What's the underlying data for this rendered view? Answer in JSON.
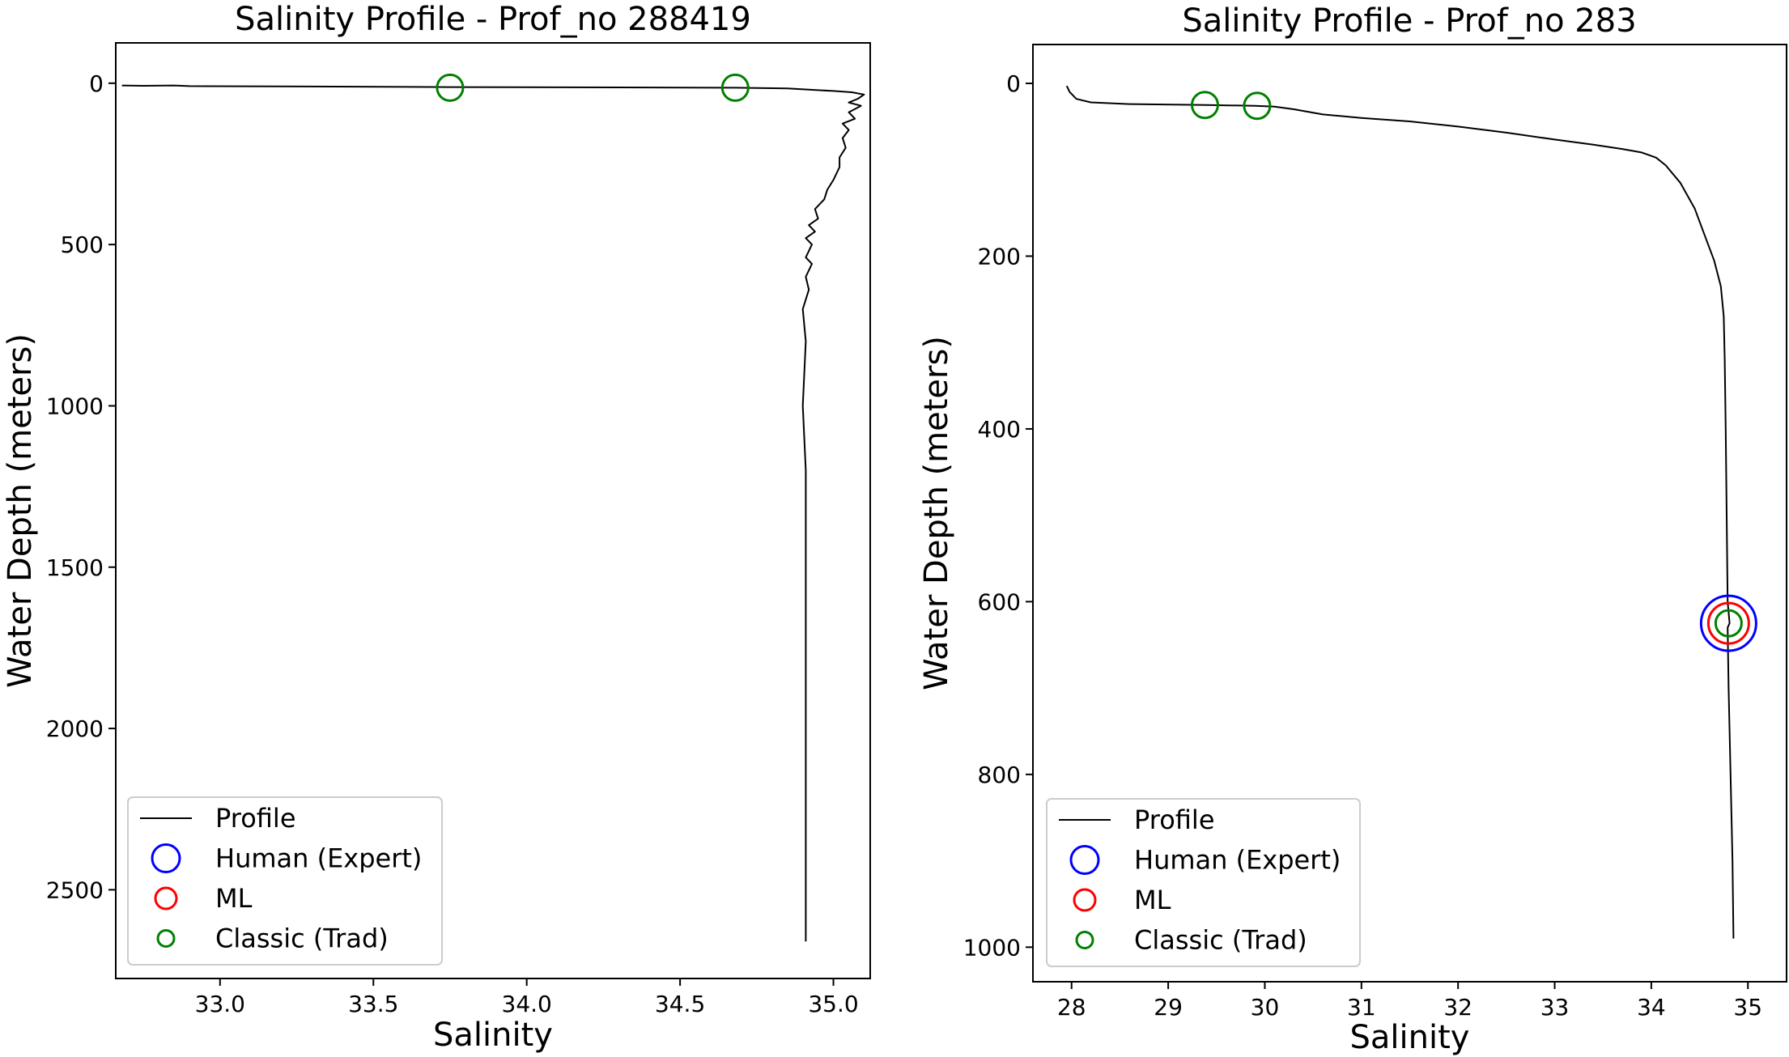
{
  "chart_data": [
    {
      "type": "line",
      "title": "Salinity Profile - Prof_no 288419",
      "xlabel": "Salinity",
      "ylabel": "Water Depth (meters)",
      "xlim": [
        32.66,
        35.12
      ],
      "ylim": [
        2775,
        -125
      ],
      "y_inverted": true,
      "xticks": [
        33.0,
        33.5,
        34.0,
        34.5,
        35.0
      ],
      "xtick_labels": [
        "33.0",
        "33.5",
        "34.0",
        "34.5",
        "35.0"
      ],
      "yticks": [
        0,
        500,
        1000,
        1500,
        2000,
        2500
      ],
      "ytick_labels": [
        "0",
        "500",
        "1000",
        "1500",
        "2000",
        "2500"
      ],
      "legend": {
        "position": "lower-left",
        "entries": [
          {
            "label": "Profile",
            "marker": "line",
            "color": "#000000"
          },
          {
            "label": "Human (Expert)",
            "marker": "circle-large",
            "color": "#0000ff"
          },
          {
            "label": "ML",
            "marker": "circle-medium",
            "color": "#ff0000"
          },
          {
            "label": "Classic (Trad)",
            "marker": "circle-small",
            "color": "#008000"
          }
        ]
      },
      "series": [
        {
          "name": "Profile",
          "color": "#000000",
          "points": [
            [
              32.68,
              7
            ],
            [
              32.75,
              8
            ],
            [
              32.85,
              7
            ],
            [
              32.9,
              9
            ],
            [
              33.2,
              10
            ],
            [
              33.75,
              12
            ],
            [
              34.3,
              13
            ],
            [
              34.68,
              14
            ],
            [
              34.85,
              16
            ],
            [
              34.92,
              20
            ],
            [
              35.0,
              24
            ],
            [
              35.06,
              28
            ],
            [
              35.1,
              35
            ],
            [
              35.08,
              48
            ],
            [
              35.05,
              60
            ],
            [
              35.09,
              70
            ],
            [
              35.05,
              90
            ],
            [
              35.07,
              110
            ],
            [
              35.03,
              125
            ],
            [
              35.05,
              145
            ],
            [
              35.03,
              170
            ],
            [
              35.04,
              200
            ],
            [
              35.02,
              230
            ],
            [
              35.02,
              260
            ],
            [
              35.0,
              300
            ],
            [
              34.98,
              330
            ],
            [
              34.97,
              360
            ],
            [
              34.94,
              390
            ],
            [
              34.95,
              420
            ],
            [
              34.92,
              440
            ],
            [
              34.94,
              460
            ],
            [
              34.91,
              480
            ],
            [
              34.93,
              500
            ],
            [
              34.91,
              540
            ],
            [
              34.93,
              560
            ],
            [
              34.91,
              600
            ],
            [
              34.92,
              640
            ],
            [
              34.9,
              700
            ],
            [
              34.91,
              800
            ],
            [
              34.9,
              1000
            ],
            [
              34.91,
              1200
            ],
            [
              34.91,
              1400
            ],
            [
              34.91,
              1600
            ],
            [
              34.91,
              1800
            ],
            [
              34.91,
              2000
            ],
            [
              34.91,
              2200
            ],
            [
              34.91,
              2400
            ],
            [
              34.91,
              2600
            ],
            [
              34.91,
              2660
            ]
          ]
        },
        {
          "name": "Human (Expert)",
          "color": "#0000ff",
          "points": []
        },
        {
          "name": "ML",
          "color": "#ff0000",
          "points": []
        },
        {
          "name": "Classic (Trad)",
          "color": "#008000",
          "points": [
            [
              33.75,
              14
            ],
            [
              34.68,
              14
            ]
          ]
        }
      ]
    },
    {
      "type": "line",
      "title": "Salinity Profile - Prof_no 283",
      "xlabel": "Salinity",
      "ylabel": "Water Depth (meters)",
      "xlim": [
        27.6,
        35.4
      ],
      "ylim": [
        1040,
        -45
      ],
      "y_inverted": true,
      "xticks": [
        28,
        29,
        30,
        31,
        32,
        33,
        34,
        35
      ],
      "xtick_labels": [
        "28",
        "29",
        "30",
        "31",
        "32",
        "33",
        "34",
        "35"
      ],
      "yticks": [
        0,
        200,
        400,
        600,
        800,
        1000
      ],
      "ytick_labels": [
        "0",
        "200",
        "400",
        "600",
        "800",
        "1000"
      ],
      "legend": {
        "position": "lower-left",
        "entries": [
          {
            "label": "Profile",
            "marker": "line",
            "color": "#000000"
          },
          {
            "label": "Human (Expert)",
            "marker": "circle-large",
            "color": "#0000ff"
          },
          {
            "label": "ML",
            "marker": "circle-medium",
            "color": "#ff0000"
          },
          {
            "label": "Classic (Trad)",
            "marker": "circle-small",
            "color": "#008000"
          }
        ]
      },
      "series": [
        {
          "name": "Profile",
          "color": "#000000",
          "points": [
            [
              27.95,
              3
            ],
            [
              27.98,
              10
            ],
            [
              28.05,
              18
            ],
            [
              28.2,
              22
            ],
            [
              28.6,
              24
            ],
            [
              29.4,
              25
            ],
            [
              29.9,
              26
            ],
            [
              30.1,
              27
            ],
            [
              30.3,
              30
            ],
            [
              30.6,
              36
            ],
            [
              31.0,
              40
            ],
            [
              31.5,
              44
            ],
            [
              32.0,
              50
            ],
            [
              32.5,
              57
            ],
            [
              33.0,
              65
            ],
            [
              33.4,
              71
            ],
            [
              33.7,
              76
            ],
            [
              33.9,
              80
            ],
            [
              34.05,
              86
            ],
            [
              34.15,
              95
            ],
            [
              34.3,
              115
            ],
            [
              34.45,
              145
            ],
            [
              34.55,
              175
            ],
            [
              34.65,
              205
            ],
            [
              34.72,
              235
            ],
            [
              34.75,
              270
            ],
            [
              34.76,
              320
            ],
            [
              34.77,
              400
            ],
            [
              34.78,
              500
            ],
            [
              34.79,
              600
            ],
            [
              34.81,
              625
            ],
            [
              34.79,
              630
            ],
            [
              34.8,
              700
            ],
            [
              34.82,
              800
            ],
            [
              34.84,
              900
            ],
            [
              34.85,
              990
            ]
          ]
        },
        {
          "name": "Human (Expert)",
          "color": "#0000ff",
          "points": [
            [
              34.8,
              625
            ]
          ]
        },
        {
          "name": "ML",
          "color": "#ff0000",
          "points": [
            [
              34.8,
              625
            ]
          ]
        },
        {
          "name": "Classic (Trad)",
          "color": "#008000",
          "points": [
            [
              29.38,
              25
            ],
            [
              29.92,
              26
            ],
            [
              34.8,
              625
            ]
          ]
        }
      ]
    }
  ]
}
